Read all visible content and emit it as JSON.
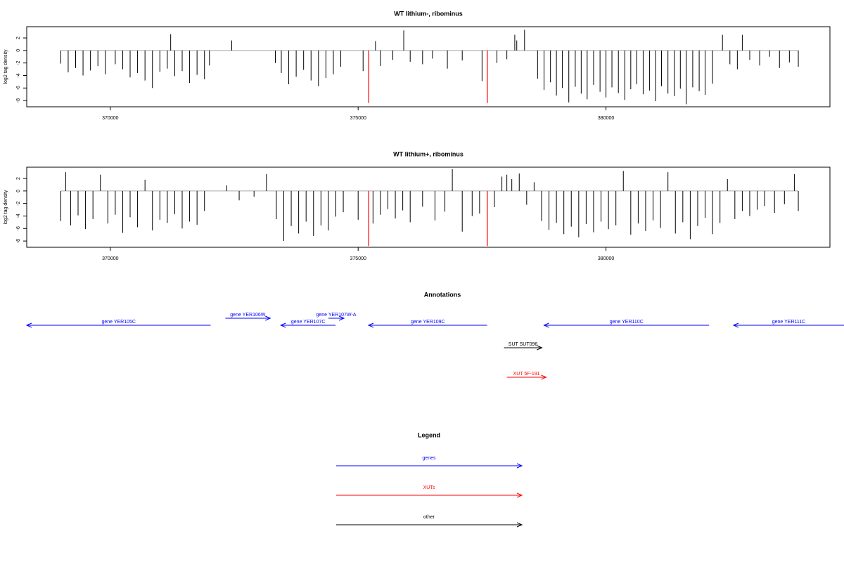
{
  "chart_data": [
    {
      "type": "spikes",
      "title": "WT lithium-, ribominus",
      "ylabel": "log2 tag density",
      "color": "#000000",
      "xlim": [
        368314,
        384518
      ],
      "ylim": [
        -9,
        3.8
      ],
      "xticks": [
        370000,
        375000,
        380000
      ],
      "yticks": [
        -8,
        -6,
        -4,
        -2,
        0,
        2
      ],
      "x": [
        369000,
        369150,
        369300,
        369450,
        369600,
        369750,
        369900,
        370100,
        370250,
        370400,
        370550,
        370700,
        370850,
        371000,
        371150,
        371218,
        371300,
        371450,
        371600,
        371750,
        371900,
        372000,
        372450,
        373330,
        373450,
        373600,
        373750,
        373900,
        374050,
        374200,
        374350,
        374500,
        374650,
        375100,
        375350,
        375450,
        375700,
        375920,
        376050,
        376300,
        376500,
        376800,
        377100,
        377500,
        377800,
        378000,
        378160,
        378200,
        378357,
        378620,
        378750,
        378880,
        379000,
        379120,
        379250,
        379380,
        379500,
        379620,
        379750,
        379880,
        380000,
        380120,
        380250,
        380380,
        380500,
        380620,
        380750,
        380880,
        381000,
        381120,
        381250,
        381380,
        381500,
        381620,
        381750,
        381880,
        382000,
        382150,
        382350,
        382500,
        382650,
        382750,
        382900,
        383100,
        383300,
        383500,
        383700,
        383880
      ],
      "values": [
        -2.1,
        -3.5,
        -2.8,
        -4.0,
        -3.2,
        -2.5,
        -3.8,
        -2.2,
        -3.0,
        -4.3,
        -3.6,
        -4.8,
        -6.0,
        -3.4,
        -2.9,
        2.6,
        -4.1,
        -3.3,
        -5.2,
        -3.9,
        -4.6,
        -2.4,
        1.6,
        -2.0,
        -3.6,
        -5.4,
        -4.2,
        -3.1,
        -4.8,
        -5.7,
        -4.4,
        -3.8,
        -2.6,
        -3.3,
        1.5,
        -2.5,
        -1.5,
        3.2,
        -1.8,
        -2.2,
        -1.3,
        -2.9,
        -1.6,
        -4.9,
        -2.0,
        -1.4,
        2.5,
        1.6,
        3.3,
        -4.5,
        -6.3,
        -5.1,
        -7.2,
        -6.0,
        -8.3,
        -5.8,
        -6.9,
        -7.8,
        -5.5,
        -6.6,
        -7.5,
        -5.9,
        -6.8,
        -7.9,
        -6.2,
        -5.4,
        -7.0,
        -6.4,
        -8.1,
        -5.7,
        -6.9,
        -7.3,
        -6.1,
        -8.6,
        -5.9,
        -6.5,
        -7.1,
        -5.3,
        2.5,
        -2.2,
        -3.0,
        2.5,
        -1.5,
        -2.4,
        -1.0,
        -2.8,
        -1.9,
        -2.6
      ],
      "markers": {
        "color": "#ff0000",
        "x": [
          375212,
          377606
        ],
        "values": [
          -8.4,
          -8.4
        ]
      }
    },
    {
      "type": "spikes",
      "title": "WT lithium+, ribominus",
      "ylabel": "log2 tag density",
      "color": "#000000",
      "xlim": [
        368314,
        384518
      ],
      "ylim": [
        -9,
        3.8
      ],
      "xticks": [
        370000,
        375000,
        380000
      ],
      "yticks": [
        -8,
        -6,
        -4,
        -2,
        0,
        2
      ],
      "x": [
        369000,
        369100,
        369200,
        369350,
        369500,
        369650,
        369800,
        369950,
        370100,
        370250,
        370400,
        370550,
        370700,
        370850,
        371000,
        371150,
        371300,
        371450,
        371600,
        371750,
        371900,
        372350,
        372600,
        372900,
        373150,
        373350,
        373500,
        373650,
        373800,
        373950,
        374100,
        374250,
        374400,
        374550,
        374700,
        375000,
        375300,
        375450,
        375600,
        375750,
        375900,
        376050,
        376300,
        376550,
        376750,
        376900,
        377100,
        377300,
        377450,
        377750,
        377900,
        378000,
        378100,
        378250,
        378400,
        378550,
        378700,
        378850,
        379000,
        379150,
        379300,
        379450,
        379600,
        379750,
        379900,
        380050,
        380200,
        380350,
        380500,
        380650,
        380800,
        380950,
        381100,
        381250,
        381400,
        381550,
        381700,
        381850,
        382000,
        382150,
        382300,
        382450,
        382600,
        382750,
        382900,
        383050,
        383200,
        383400,
        383600,
        383800,
        383880
      ],
      "values": [
        -4.8,
        3.0,
        -5.5,
        -3.9,
        -6.1,
        -4.5,
        2.6,
        -5.2,
        -3.8,
        -6.7,
        -4.2,
        -5.8,
        1.8,
        -6.3,
        -4.6,
        -5.1,
        -3.7,
        -6.0,
        -4.9,
        -5.4,
        -3.2,
        0.9,
        -1.5,
        -0.9,
        2.7,
        -4.5,
        -8.0,
        -5.6,
        -6.8,
        -4.9,
        -7.2,
        -5.5,
        -6.3,
        -4.1,
        -3.4,
        -4.6,
        -5.2,
        -3.8,
        -2.9,
        -4.4,
        -3.1,
        -5.0,
        -2.5,
        -4.7,
        -3.3,
        3.5,
        -6.5,
        -4.0,
        -3.6,
        -2.6,
        2.3,
        2.6,
        1.9,
        2.8,
        -2.2,
        1.4,
        -4.8,
        -6.2,
        -5.1,
        -6.9,
        -5.7,
        -7.4,
        -5.3,
        -6.6,
        -4.9,
        -6.1,
        -5.5,
        3.2,
        -7.0,
        -5.2,
        -6.4,
        -4.7,
        -5.9,
        3.0,
        -6.8,
        -5.0,
        -7.7,
        -5.6,
        -4.3,
        -6.9,
        -5.1,
        1.9,
        -4.5,
        -3.2,
        -4.0,
        -3.0,
        -2.4,
        -3.5,
        -2.1,
        2.7,
        -3.2
      ],
      "markers": {
        "color": "#ff0000",
        "x": [
          375212,
          377606
        ],
        "values": [
          -8.8,
          -8.8
        ]
      }
    },
    {
      "type": "annotations",
      "title": "Annotations",
      "xlim": [
        368314,
        384518
      ],
      "features": [
        {
          "label": "gene YER105C",
          "start": 368314,
          "end": 372024,
          "strand": "-",
          "color": "#0000ff"
        },
        {
          "label": "gene YER106W",
          "start": 372321,
          "end": 373227,
          "strand": "+",
          "color": "#0000ff"
        },
        {
          "label": "gene YER107C",
          "start": 373440,
          "end": 374544,
          "strand": "-",
          "color": "#0000ff"
        },
        {
          "label": "gene YER107W-A",
          "start": 374400,
          "end": 374714,
          "strand": "+",
          "color": "#0000ff"
        },
        {
          "label": "gene YER109C",
          "start": 375210,
          "end": 377603,
          "strand": "-",
          "color": "#0000ff"
        },
        {
          "label": "gene YER110C",
          "start": 378750,
          "end": 382078,
          "strand": "-",
          "color": "#0000ff"
        },
        {
          "label": "gene YER111C",
          "start": 382573,
          "end": 384960,
          "strand": "-",
          "color": "#0000ff"
        },
        {
          "label": "SUT SUT096",
          "start": 377943,
          "end": 378707,
          "strand": "+",
          "color": "#000000"
        },
        {
          "label": "XUT 5F-191",
          "start": 378000,
          "end": 378792,
          "strand": "+",
          "color": "#ff0000"
        }
      ],
      "legend": {
        "title": "Legend",
        "items": [
          {
            "name": "genes",
            "color": "#0000ff"
          },
          {
            "name": "XUTs",
            "color": "#ff0000"
          },
          {
            "name": "other",
            "color": "#000000"
          }
        ]
      }
    }
  ]
}
